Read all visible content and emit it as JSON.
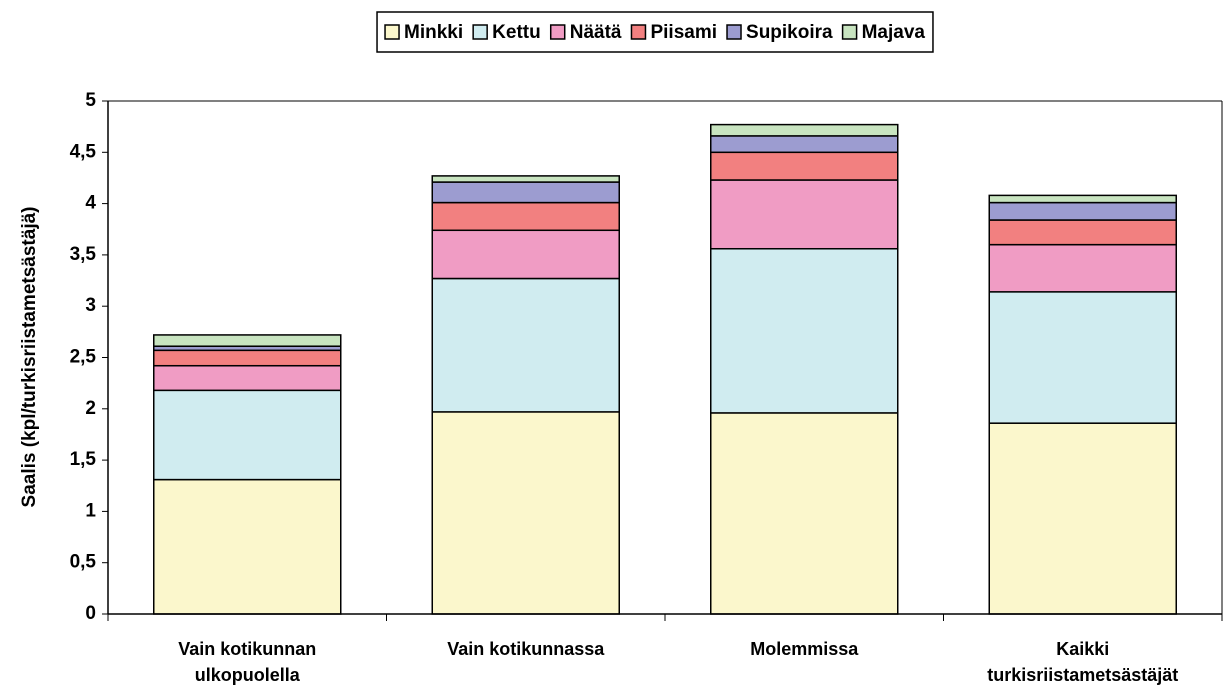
{
  "chart_data": {
    "type": "stacked_bar",
    "y_label": "Saalis (kpl/turkisriistametsästäjä)",
    "categories": [
      "Vain kotikunnan ulkopuolella",
      "Vain kotikunnassa",
      "Molemmissa",
      "Kaikki turkisriistametsästäjät"
    ],
    "series": [
      {
        "name": "Minkki",
        "color": "#fbf7cc",
        "values": [
          1.31,
          1.97,
          1.96,
          1.86
        ]
      },
      {
        "name": "Kettu",
        "color": "#d0ecf0",
        "values": [
          0.87,
          1.3,
          1.6,
          1.28
        ]
      },
      {
        "name": "Näätä",
        "color": "#f09cc4",
        "values": [
          0.24,
          0.47,
          0.67,
          0.46
        ]
      },
      {
        "name": "Piisami",
        "color": "#f28080",
        "values": [
          0.15,
          0.27,
          0.27,
          0.24
        ]
      },
      {
        "name": "Supikoira",
        "color": "#9c9cd0",
        "values": [
          0.04,
          0.2,
          0.16,
          0.17
        ]
      },
      {
        "name": "Majava",
        "color": "#c8e4c0",
        "values": [
          0.11,
          0.06,
          0.11,
          0.07
        ]
      }
    ],
    "ylim": [
      0,
      5
    ],
    "yticks": [
      0,
      {
        "value": 0.5,
        "label": "0,5"
      },
      1,
      {
        "value": 1.5,
        "label": "1,5"
      },
      2,
      {
        "value": 2.5,
        "label": "2,5"
      },
      3,
      {
        "value": 3.5,
        "label": "3,5"
      },
      4,
      {
        "value": 4.5,
        "label": "4,5"
      },
      5
    ],
    "legend": "top",
    "grid": false
  }
}
